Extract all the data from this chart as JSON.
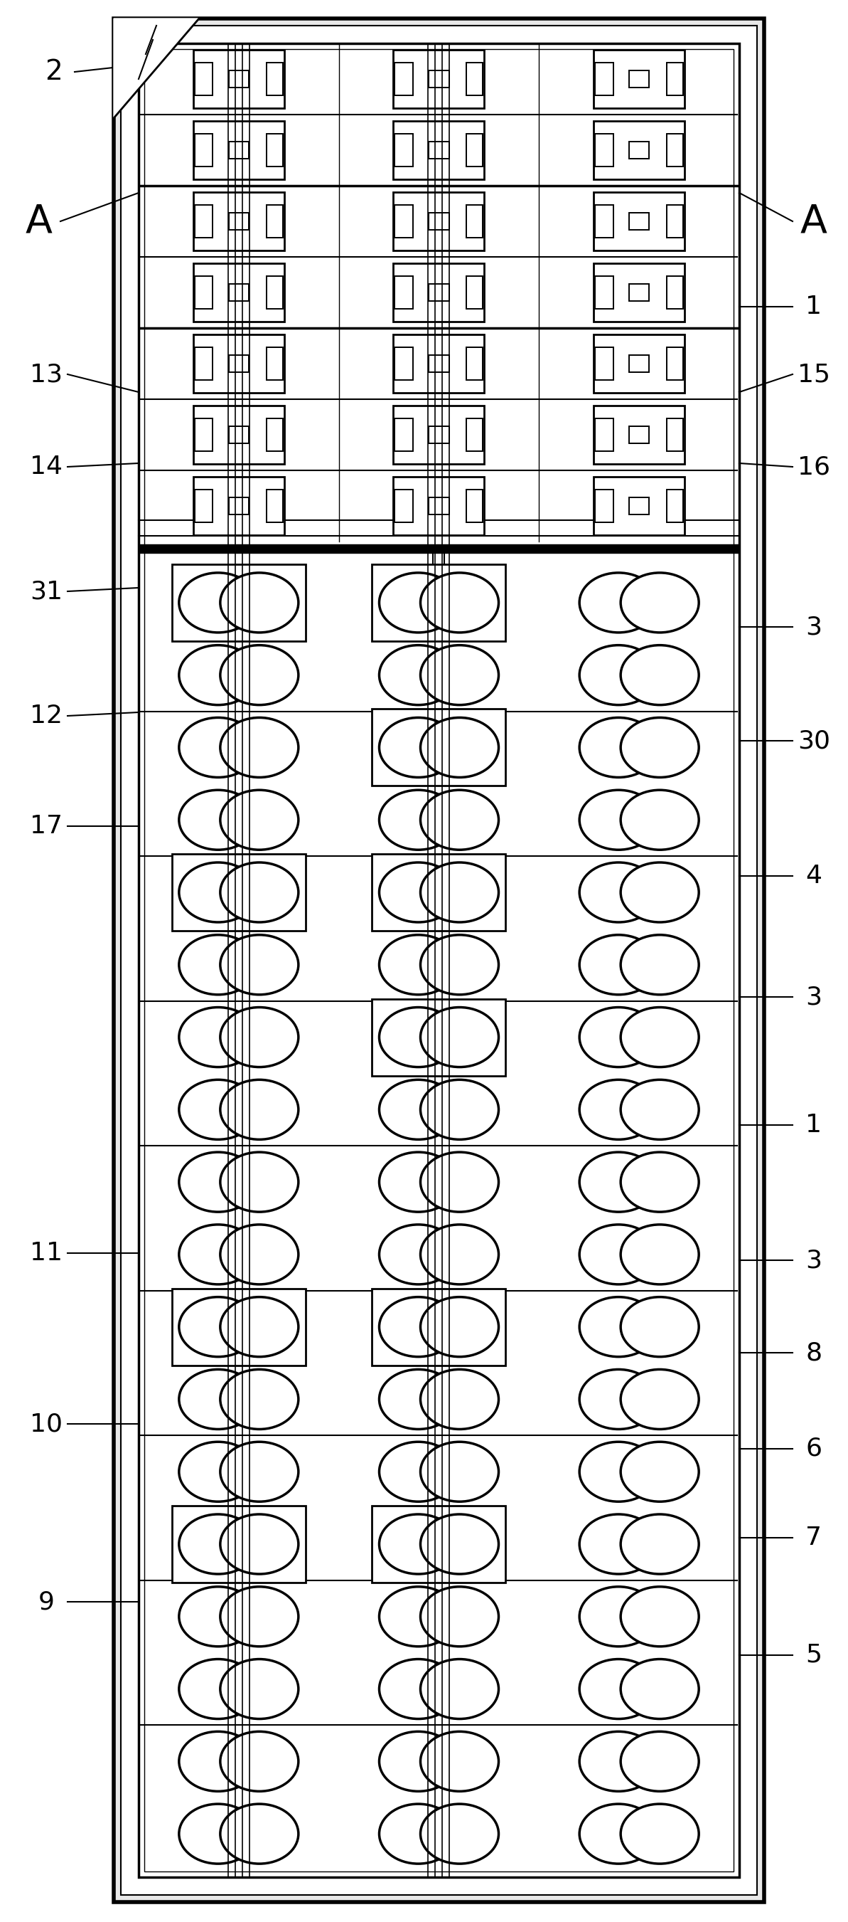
{
  "fig_width": 11.93,
  "fig_height": 27.01,
  "bg_color": "#ffffff",
  "line_color": "#000000",
  "OL": 160,
  "OR": 1075,
  "OT": 2675,
  "OB": 28,
  "IL": 195,
  "IR": 1040,
  "IT": 2640,
  "IB": 63,
  "labels_left": [
    [
      75,
      2600,
      "2",
      28
    ],
    [
      55,
      2390,
      "A",
      40
    ],
    [
      65,
      2175,
      "13",
      26
    ],
    [
      65,
      2045,
      "14",
      26
    ],
    [
      65,
      1870,
      "31",
      26
    ],
    [
      65,
      1695,
      "12",
      26
    ],
    [
      65,
      1540,
      "17",
      26
    ],
    [
      65,
      940,
      "11",
      26
    ],
    [
      65,
      700,
      "10",
      26
    ],
    [
      65,
      450,
      "9",
      26
    ]
  ],
  "labels_right": [
    [
      1145,
      2390,
      "A",
      40
    ],
    [
      1145,
      2270,
      "1",
      26
    ],
    [
      1145,
      2175,
      "15",
      26
    ],
    [
      1145,
      2045,
      "16",
      26
    ],
    [
      1145,
      1820,
      "3",
      26
    ],
    [
      1145,
      1660,
      "30",
      26
    ],
    [
      1145,
      1470,
      "4",
      26
    ],
    [
      1145,
      1300,
      "3",
      26
    ],
    [
      1145,
      1120,
      "1",
      26
    ],
    [
      1145,
      930,
      "3",
      26
    ],
    [
      1145,
      800,
      "8",
      26
    ],
    [
      1145,
      665,
      "6",
      26
    ],
    [
      1145,
      540,
      "7",
      26
    ],
    [
      1145,
      375,
      "5",
      26
    ]
  ]
}
